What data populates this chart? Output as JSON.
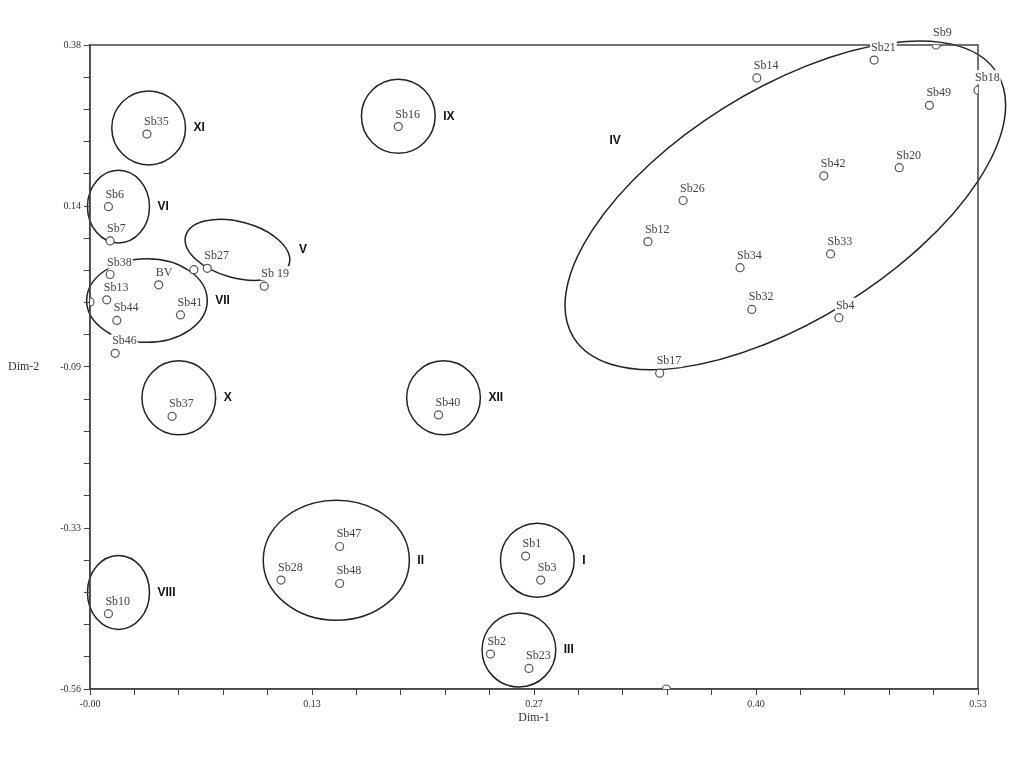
{
  "chart_data": {
    "type": "scatter",
    "xlabel": "Dim-1",
    "ylabel": "Dim-2",
    "marker": "circle",
    "grid": false,
    "legend": false,
    "xlim": [
      0,
      0.53
    ],
    "xticks": [
      {
        "value": 0,
        "label": "-0.00"
      },
      {
        "value": 0.0265,
        "label": null
      },
      {
        "value": 0.053,
        "label": null
      },
      {
        "value": 0.0795,
        "label": null
      },
      {
        "value": 0.106,
        "label": null
      },
      {
        "value": 0.1325,
        "label": "0.13"
      },
      {
        "value": 0.159,
        "label": null
      },
      {
        "value": 0.1855,
        "label": null
      },
      {
        "value": 0.212,
        "label": null
      },
      {
        "value": 0.2385,
        "label": null
      },
      {
        "value": 0.265,
        "label": "0.27"
      },
      {
        "value": 0.2915,
        "label": null
      },
      {
        "value": 0.318,
        "label": null
      },
      {
        "value": 0.3445,
        "label": null
      },
      {
        "value": 0.371,
        "label": null
      },
      {
        "value": 0.3975,
        "label": "0.40"
      },
      {
        "value": 0.424,
        "label": null
      },
      {
        "value": 0.4505,
        "label": null
      },
      {
        "value": 0.477,
        "label": null
      },
      {
        "value": 0.5035,
        "label": null
      },
      {
        "value": 0.53,
        "label": "0.53"
      }
    ],
    "ylim": [
      -0.56,
      0.38
    ],
    "yticks": [
      {
        "value": 0.38,
        "label": "0.38"
      },
      {
        "value": 0.333,
        "label": null
      },
      {
        "value": 0.286,
        "label": null
      },
      {
        "value": 0.239,
        "label": null
      },
      {
        "value": 0.192,
        "label": null
      },
      {
        "value": 0.145,
        "label": "0.14"
      },
      {
        "value": 0.098,
        "label": null
      },
      {
        "value": 0.051,
        "label": null
      },
      {
        "value": 0.004,
        "label": null
      },
      {
        "value": -0.043,
        "label": null
      },
      {
        "value": -0.09,
        "label": "-0.09"
      },
      {
        "value": -0.137,
        "label": null
      },
      {
        "value": -0.184,
        "label": null
      },
      {
        "value": -0.231,
        "label": null
      },
      {
        "value": -0.278,
        "label": null
      },
      {
        "value": -0.325,
        "label": "-0.33"
      },
      {
        "value": -0.372,
        "label": null
      },
      {
        "value": -0.419,
        "label": null
      },
      {
        "value": -0.466,
        "label": null
      },
      {
        "value": -0.513,
        "label": null
      },
      {
        "value": -0.56,
        "label": "-0.56"
      }
    ],
    "series": [
      {
        "color": "#555555",
        "x": [
          0.034,
          0.011,
          0.012,
          0.104,
          0.041,
          0.062,
          0.07,
          0.0,
          0.012,
          0.01,
          0.016,
          0.015,
          0.054,
          0.184,
          0.208,
          0.34,
          0.398,
          0.468,
          0.505,
          0.53,
          0.501,
          0.483,
          0.438,
          0.354,
          0.333,
          0.388,
          0.442,
          0.395,
          0.447,
          0.049,
          0.011,
          0.149,
          0.149,
          0.114,
          0.26,
          0.269,
          0.239,
          0.262,
          0.344
        ],
        "values": [
          0.25,
          0.144,
          0.094,
          0.028,
          0.03,
          0.052,
          0.054,
          0.005,
          0.045,
          0.008,
          -0.022,
          -0.07,
          -0.014,
          0.261,
          -0.16,
          -0.099,
          0.332,
          0.358,
          0.38,
          0.314,
          0.292,
          0.201,
          0.189,
          0.153,
          0.093,
          0.055,
          0.075,
          -0.006,
          -0.018,
          -0.162,
          -0.45,
          -0.352,
          -0.406,
          -0.401,
          -0.366,
          -0.401,
          -0.509,
          -0.53,
          -0.56
        ],
        "value_labels": [
          "Sb35",
          "Sb6",
          "Sb7",
          "Sb 19",
          "BV",
          null,
          "Sb27",
          null,
          "Sb38",
          "Sb13",
          "Sb44",
          "Sb46",
          "Sb41",
          "Sb16",
          "Sb40",
          "Sb17",
          "Sb14",
          "Sb21",
          "Sb9",
          "Sb18",
          "Sb49",
          "Sb20",
          "Sb42",
          "Sb26",
          "Sb12",
          "Sb34",
          "Sb33",
          "Sb32",
          "Sb4",
          "Sb37",
          "Sb10",
          "Sb47",
          "Sb48",
          "Sb28",
          "Sb1",
          "Sb3",
          "Sb2",
          "Sb23",
          null
        ]
      }
    ],
    "annotations": [
      "XI",
      "IX",
      "IV",
      "VI",
      "V",
      "VII",
      "X",
      "XII",
      "II",
      "I",
      "VIII",
      "III"
    ]
  }
}
